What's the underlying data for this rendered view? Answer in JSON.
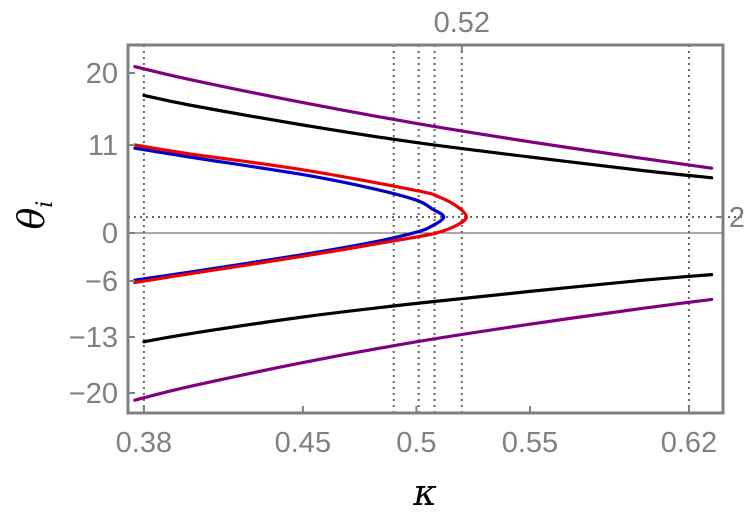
{
  "chart_data": {
    "type": "line",
    "xlabel": "κ",
    "ylabel": "θ",
    "ylabel_sub": "i",
    "xlim": [
      0.373,
      0.635
    ],
    "ylim": [
      -22.5,
      23.5
    ],
    "x_ticks": [
      {
        "value": 0.38,
        "label": "0.38"
      },
      {
        "value": 0.45,
        "label": "0.45"
      },
      {
        "value": 0.5,
        "label": "0.5"
      },
      {
        "value": 0.55,
        "label": "0.55"
      },
      {
        "value": 0.62,
        "label": "0.62"
      }
    ],
    "y_ticks": [
      {
        "value": 20,
        "label": "20"
      },
      {
        "value": 11,
        "label": "11"
      },
      {
        "value": 0,
        "label": "0"
      },
      {
        "value": -6,
        "label": "−6"
      },
      {
        "value": -13,
        "label": "−13"
      },
      {
        "value": -20,
        "label": "−20"
      }
    ],
    "top_annotation": {
      "value": 0.52,
      "label": "0.52"
    },
    "right_annotation": {
      "value": 2,
      "label": "2"
    },
    "vlines": [
      0.38,
      0.49,
      0.501,
      0.508,
      0.52,
      0.62
    ],
    "hlines": [
      2
    ],
    "zero_line": 0,
    "grid": false,
    "series": [
      {
        "color": "#800080",
        "x": [
          0.376,
          0.4,
          0.45,
          0.5,
          0.55,
          0.6,
          0.63
        ],
        "y": [
          20.8,
          19.2,
          16.3,
          13.7,
          11.4,
          9.3,
          8.1
        ]
      },
      {
        "color": "#000000",
        "x": [
          0.38,
          0.4,
          0.45,
          0.5,
          0.55,
          0.6,
          0.63
        ],
        "y": [
          17.2,
          16.0,
          13.5,
          11.3,
          9.5,
          7.8,
          6.9
        ]
      },
      {
        "color": "#000000",
        "x": [
          0.38,
          0.4,
          0.45,
          0.5,
          0.55,
          0.6,
          0.63
        ],
        "y": [
          -13.6,
          -12.6,
          -10.5,
          -8.8,
          -7.3,
          -5.9,
          -5.2
        ]
      },
      {
        "color": "#800080",
        "x": [
          0.376,
          0.4,
          0.45,
          0.5,
          0.55,
          0.6,
          0.63
        ],
        "y": [
          -20.9,
          -19.2,
          -16.2,
          -13.6,
          -11.4,
          -9.4,
          -8.3
        ]
      },
      {
        "color": "#0000cc",
        "x": [
          0.376,
          0.4,
          0.45,
          0.48,
          0.5,
          0.507,
          0.512,
          0.507,
          0.5,
          0.48,
          0.45,
          0.4,
          0.376
        ],
        "y": [
          10.6,
          9.5,
          7.3,
          5.6,
          4.1,
          3.0,
          2.0,
          0.9,
          0.1,
          -1.2,
          -2.7,
          -4.9,
          -5.9
        ]
      },
      {
        "color": "#ee0000",
        "x": [
          0.376,
          0.4,
          0.45,
          0.5,
          0.51,
          0.518,
          0.522,
          0.518,
          0.51,
          0.5,
          0.45,
          0.4,
          0.376
        ],
        "y": [
          11.0,
          9.9,
          7.9,
          5.3,
          4.5,
          3.3,
          2.0,
          1.0,
          0.1,
          -0.5,
          -2.9,
          -5.1,
          -6.2
        ]
      }
    ]
  }
}
